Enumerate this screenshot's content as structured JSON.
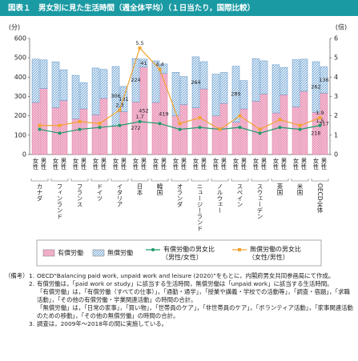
{
  "chart_data": {
    "type": "bar",
    "stacked": true,
    "title": "図表１　男女別に見た生活時間（週全体平均）（１日当たり，国際比較）",
    "y_label": "(分)",
    "y2_label": "(倍)",
    "categories": [
      "女性",
      "男性",
      "女性",
      "男性",
      "女性",
      "男性",
      "女性",
      "男性",
      "女性",
      "男性",
      "女性",
      "男性",
      "女性",
      "男性",
      "女性",
      "男性",
      "女性",
      "男性",
      "女性",
      "男性",
      "女性",
      "男性",
      "女性",
      "男性",
      "女性",
      "男性",
      "女性",
      "男性",
      "女性",
      "男性"
    ],
    "groups": [
      "カナダ",
      "フィンランド",
      "フランス",
      "ドイツ",
      "イタリア",
      "日本",
      "韓国",
      "オランダ",
      "ニュージーランド",
      "ノルウェー",
      "スペイン",
      "スウェーデン",
      "英国",
      "米国",
      "OECD全体"
    ],
    "series": [
      {
        "name": "有償労働",
        "color": "#f6bfd4",
        "pattern": "crosshatch",
        "values": [
          269,
          341,
          243,
          279,
          185,
          236,
          205,
          290,
          149,
          221,
          272,
          452,
          269,
          419,
          200,
          258,
          241,
          339,
          200,
          264,
          167,
          236,
          275,
          313,
          215,
          309,
          246,
          327,
          218,
          317
        ],
        "value_labels": [
          null,
          null,
          null,
          null,
          null,
          null,
          null,
          null,
          null,
          null,
          "272",
          "452",
          null,
          "419",
          null,
          null,
          null,
          null,
          null,
          null,
          null,
          null,
          null,
          null,
          null,
          null,
          null,
          null,
          "218",
          "317"
        ]
      },
      {
        "name": "無償労働",
        "color": "#bcd8ef",
        "pattern": "diagonal",
        "values": [
          224,
          148,
          236,
          159,
          224,
          135,
          242,
          150,
          306,
          131,
          224,
          41,
          215,
          49,
          225,
          145,
          264,
          141,
          215,
          160,
          289,
          146,
          220,
          171,
          249,
          140,
          244,
          166,
          262,
          136
        ],
        "value_labels": [
          null,
          null,
          null,
          null,
          null,
          null,
          null,
          null,
          "306",
          "131",
          "224",
          "41",
          null,
          null,
          null,
          null,
          "264",
          null,
          null,
          null,
          "289",
          null,
          null,
          null,
          null,
          null,
          null,
          null,
          "262",
          "136"
        ]
      }
    ],
    "line_series": [
      {
        "name": "有償労働の男女比（男性/女性）",
        "color": "#1f9a6a",
        "axis": "y2",
        "values": [
          1.3,
          1.1,
          1.3,
          1.4,
          1.5,
          1.7,
          1.6,
          1.3,
          1.4,
          1.3,
          1.4,
          1.1,
          1.4,
          1.3,
          1.5
        ],
        "value_labels": [
          null,
          null,
          null,
          null,
          null,
          "1.7",
          null,
          null,
          null,
          null,
          null,
          null,
          null,
          null,
          "1.5"
        ]
      },
      {
        "name": "無償労働の男女比（女性/男性）",
        "color": "#f3a431",
        "axis": "y2",
        "values": [
          1.5,
          1.5,
          1.7,
          1.6,
          2.3,
          5.5,
          4.4,
          1.6,
          1.9,
          1.3,
          2.0,
          1.3,
          1.8,
          1.5,
          1.9
        ],
        "value_labels": [
          null,
          null,
          null,
          null,
          "2.3",
          "5.5",
          "4.4",
          null,
          null,
          null,
          null,
          null,
          null,
          null,
          "1.9"
        ]
      }
    ],
    "ylim": [
      0,
      600
    ],
    "yticks": [
      0,
      100,
      200,
      300,
      400,
      500,
      600
    ],
    "y2lim": [
      0,
      6
    ],
    "y2ticks": [
      0,
      1,
      2,
      3,
      4,
      5,
      6
    ],
    "grid": false,
    "legend": "bottom"
  },
  "notes": {
    "label": "（備考）",
    "items": [
      {
        "number": "1.",
        "text": [
          "OECD“Balancing paid work, unpaid work and leisure (2020)”をもとに，内閣府男女共同参画局にて作成。"
        ]
      },
      {
        "number": "2.",
        "text": [
          "有償労働は，「paid work or study」に該当する生活時間，無償労働は「unpaid work」に該当する生活時間。",
          "「有償労働」は，「有償労働（すべての仕事）」，「通勤・通学」，「授業や講義・学校での活動等」，「調査・宿題」，「求職活動」，「その他の有償労働・学業関連活動」の時間の合計。",
          "「無償労働」は，「日常の家事」，「買い物」，「世帯員のケア」，「非世帯員のケア」，「ボランティア活動」，「家事関連活動のための移動」，「その他の無償労働」の時間の合計。"
        ]
      },
      {
        "number": "3.",
        "text": [
          "調査は，2009年～2018年の間に実施している。"
        ]
      }
    ]
  }
}
